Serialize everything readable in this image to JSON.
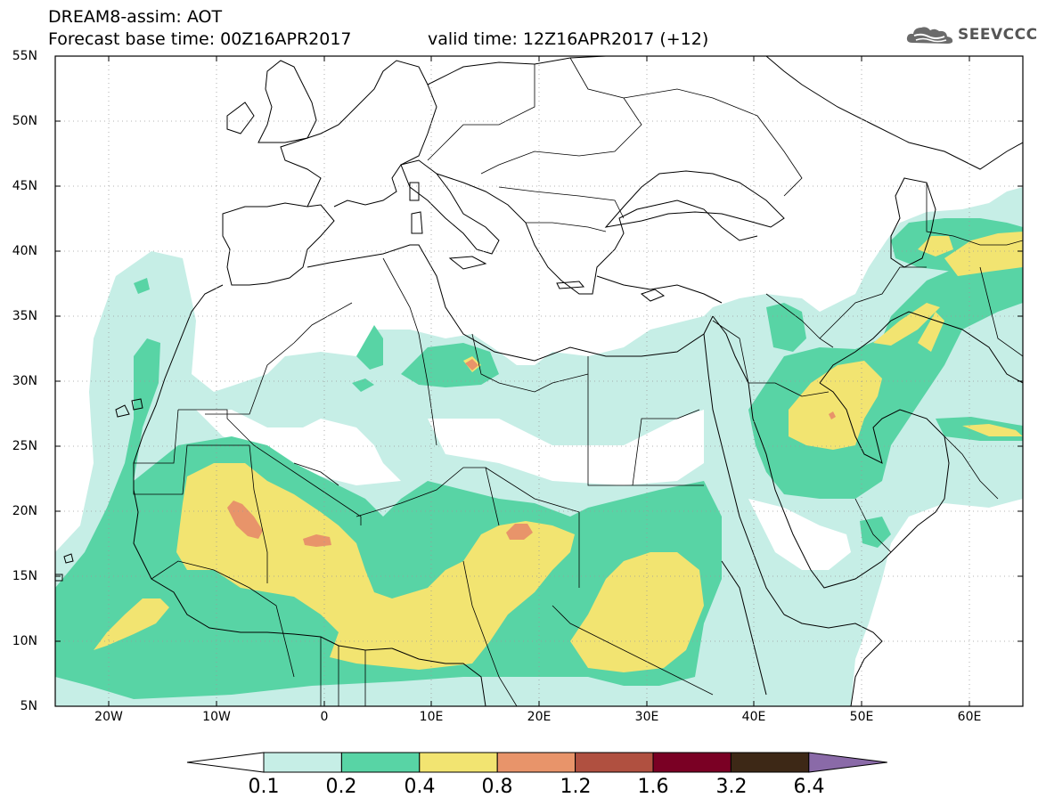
{
  "header": {
    "line1": "DREAM8-assim: AOT",
    "line2": "Forecast base time: 00Z16APR2017",
    "valid": "valid time: 12Z16APR2017 (+12)"
  },
  "logo": {
    "text": "SEEVCCC",
    "icon": "cloud-logo-icon"
  },
  "map": {
    "variable": "AOT",
    "lat_range": [
      5,
      55
    ],
    "lon_range": [
      -25,
      65
    ],
    "projection": "equirectangular",
    "grid": true,
    "lat_ticks": [
      "55N",
      "50N",
      "45N",
      "40N",
      "35N",
      "30N",
      "25N",
      "20N",
      "15N",
      "10N",
      "5N"
    ],
    "lon_ticks": [
      "20W",
      "10W",
      "0",
      "10E",
      "20E",
      "30E",
      "40E",
      "50E",
      "60E"
    ]
  },
  "legend": {
    "labels": [
      "0.1",
      "0.2",
      "0.4",
      "0.8",
      "1.2",
      "1.6",
      "3.2",
      "6.4"
    ],
    "colors": [
      "#ffffff",
      "#c6eee6",
      "#58d4a5",
      "#f2e471",
      "#e8946a",
      "#b05040",
      "#7a0024",
      "#3d2816",
      "#8a6aa8"
    ]
  }
}
